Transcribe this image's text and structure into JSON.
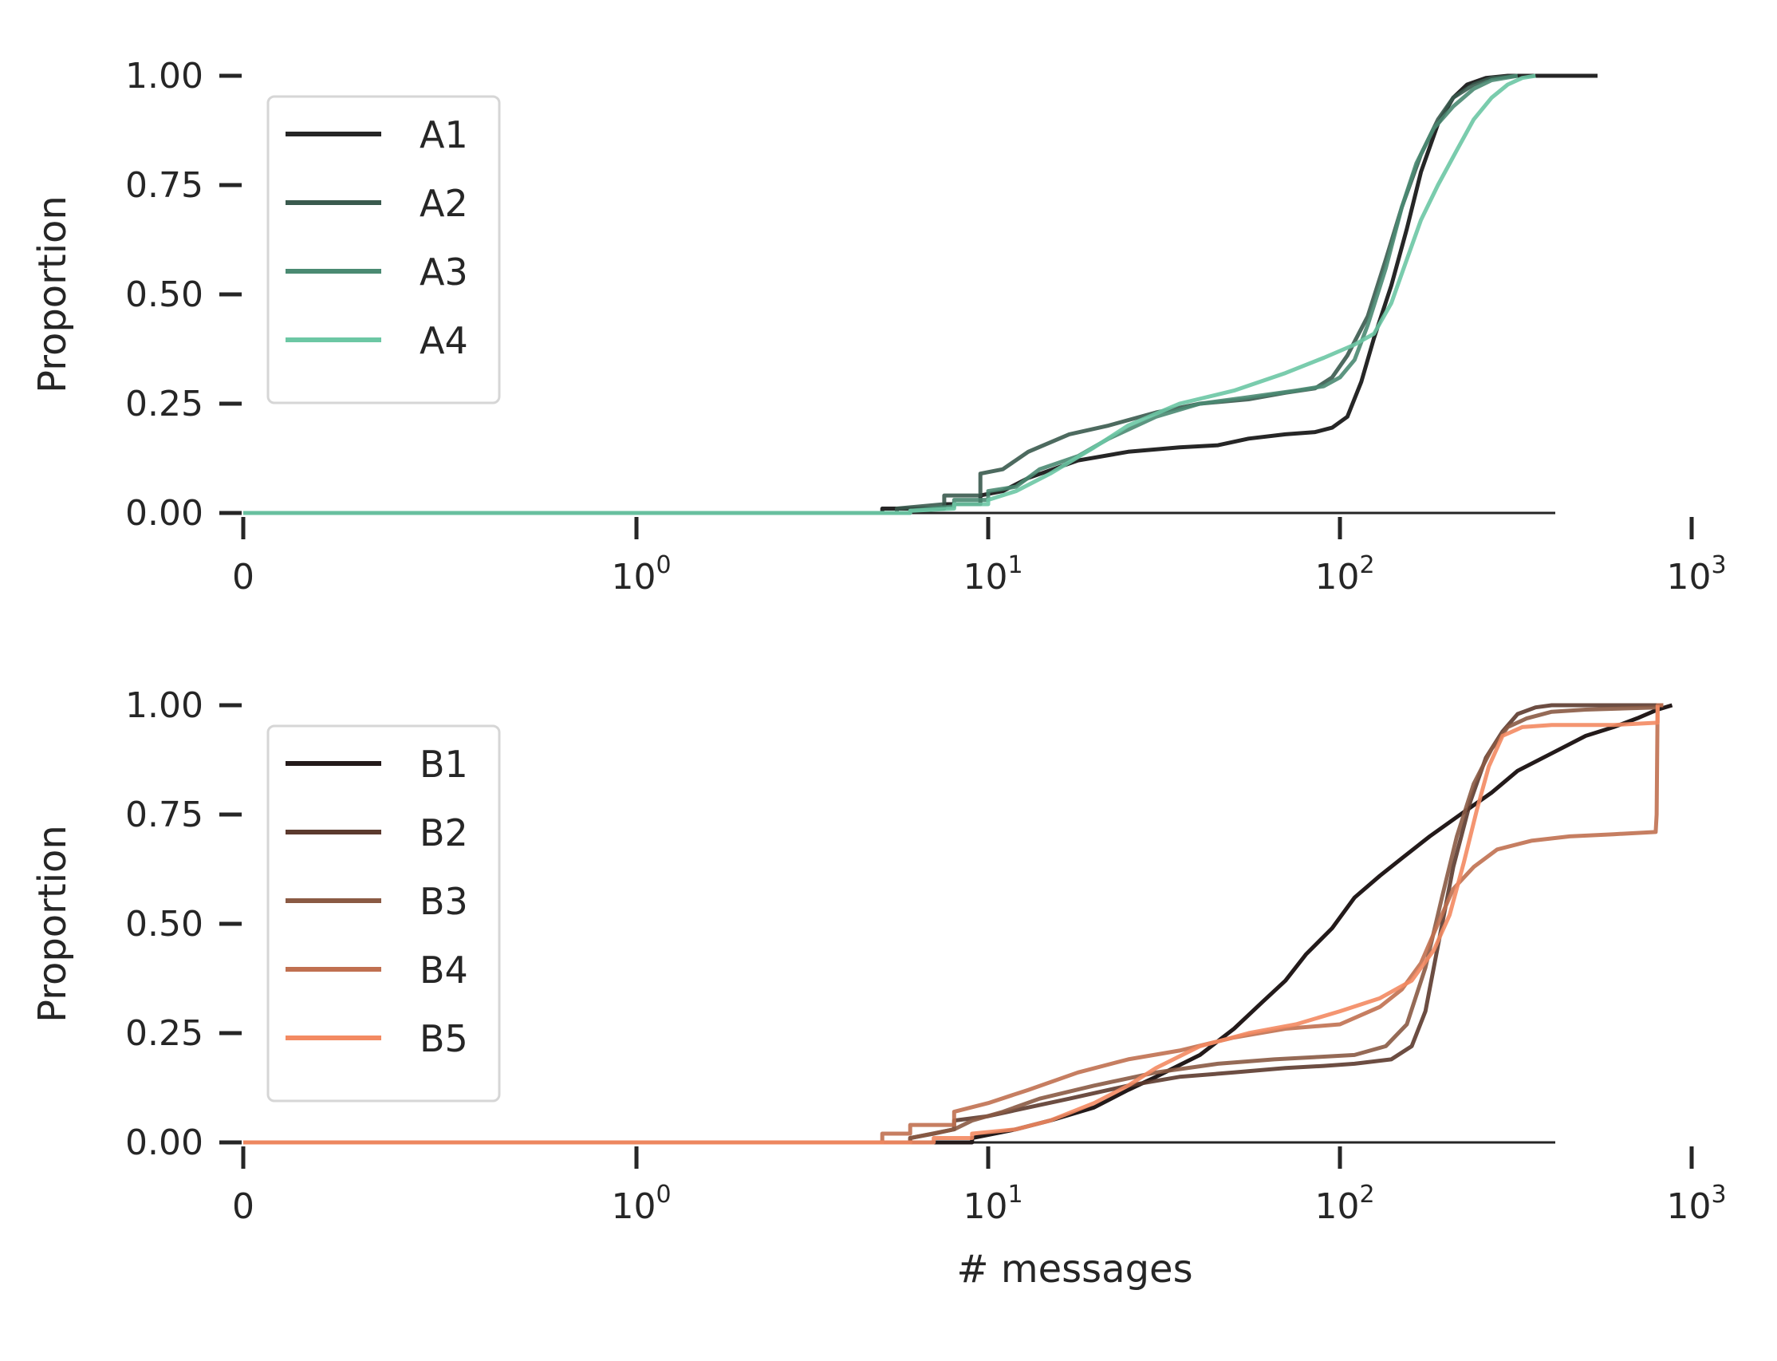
{
  "chart_data": [
    {
      "type": "line",
      "subtype": "empirical-cdf",
      "title": "",
      "xlabel": "",
      "ylabel": "Proportion",
      "xscale": "symlog",
      "xlim": [
        0,
        1000
      ],
      "ylim": [
        0,
        1
      ],
      "x_tick_labels": [
        {
          "base": "0",
          "exp": ""
        },
        {
          "base": "10",
          "exp": "0"
        },
        {
          "base": "10",
          "exp": "1"
        },
        {
          "base": "10",
          "exp": "2"
        },
        {
          "base": "10",
          "exp": "3"
        }
      ],
      "y_tick_labels": [
        "0.00",
        "0.25",
        "0.50",
        "0.75",
        "1.00"
      ],
      "grid": false,
      "legend": "upper-left",
      "series": [
        {
          "name": "A1",
          "color": "#262626",
          "points": [
            [
              0,
              0
            ],
            [
              5,
              0
            ],
            [
              5,
              0.01
            ],
            [
              7.5,
              0.01
            ],
            [
              7.5,
              0.02
            ],
            [
              9.5,
              0.02
            ],
            [
              9.5,
              0.04
            ],
            [
              11,
              0.05
            ],
            [
              13,
              0.08
            ],
            [
              18,
              0.12
            ],
            [
              25,
              0.14
            ],
            [
              35,
              0.15
            ],
            [
              45,
              0.155
            ],
            [
              55,
              0.17
            ],
            [
              70,
              0.18
            ],
            [
              85,
              0.185
            ],
            [
              95,
              0.195
            ],
            [
              105,
              0.22
            ],
            [
              115,
              0.3
            ],
            [
              125,
              0.4
            ],
            [
              140,
              0.52
            ],
            [
              155,
              0.65
            ],
            [
              170,
              0.78
            ],
            [
              190,
              0.89
            ],
            [
              210,
              0.95
            ],
            [
              230,
              0.98
            ],
            [
              260,
              0.995
            ],
            [
              300,
              1.0
            ],
            [
              540,
              1.0
            ]
          ]
        },
        {
          "name": "A2",
          "color": "#3a5a4e",
          "points": [
            [
              0,
              0
            ],
            [
              5.5,
              0
            ],
            [
              5.5,
              0.01
            ],
            [
              7.5,
              0.02
            ],
            [
              7.5,
              0.04
            ],
            [
              9.5,
              0.04
            ],
            [
              9.5,
              0.09
            ],
            [
              11,
              0.1
            ],
            [
              13,
              0.14
            ],
            [
              17,
              0.18
            ],
            [
              22,
              0.2
            ],
            [
              30,
              0.23
            ],
            [
              40,
              0.25
            ],
            [
              55,
              0.26
            ],
            [
              70,
              0.275
            ],
            [
              85,
              0.285
            ],
            [
              95,
              0.31
            ],
            [
              105,
              0.36
            ],
            [
              120,
              0.45
            ],
            [
              135,
              0.58
            ],
            [
              150,
              0.7
            ],
            [
              170,
              0.82
            ],
            [
              190,
              0.9
            ],
            [
              210,
              0.95
            ],
            [
              240,
              0.98
            ],
            [
              270,
              0.995
            ],
            [
              320,
              1.0
            ]
          ]
        },
        {
          "name": "A3",
          "color": "#4a8a72",
          "points": [
            [
              0,
              0
            ],
            [
              6,
              0
            ],
            [
              6,
              0.005
            ],
            [
              8,
              0.015
            ],
            [
              8,
              0.03
            ],
            [
              10,
              0.03
            ],
            [
              10,
              0.05
            ],
            [
              12,
              0.06
            ],
            [
              14,
              0.1
            ],
            [
              18,
              0.13
            ],
            [
              22,
              0.17
            ],
            [
              30,
              0.22
            ],
            [
              40,
              0.25
            ],
            [
              55,
              0.265
            ],
            [
              75,
              0.28
            ],
            [
              90,
              0.29
            ],
            [
              100,
              0.31
            ],
            [
              110,
              0.35
            ],
            [
              120,
              0.43
            ],
            [
              135,
              0.56
            ],
            [
              150,
              0.7
            ],
            [
              165,
              0.8
            ],
            [
              185,
              0.88
            ],
            [
              210,
              0.93
            ],
            [
              240,
              0.97
            ],
            [
              270,
              0.99
            ],
            [
              320,
              1.0
            ]
          ]
        },
        {
          "name": "A4",
          "color": "#6cc7a4",
          "points": [
            [
              0,
              0
            ],
            [
              6,
              0
            ],
            [
              6,
              0.005
            ],
            [
              8,
              0.01
            ],
            [
              8,
              0.02
            ],
            [
              10,
              0.02
            ],
            [
              10,
              0.03
            ],
            [
              12,
              0.05
            ],
            [
              15,
              0.09
            ],
            [
              20,
              0.15
            ],
            [
              25,
              0.2
            ],
            [
              35,
              0.25
            ],
            [
              50,
              0.28
            ],
            [
              70,
              0.32
            ],
            [
              90,
              0.355
            ],
            [
              110,
              0.385
            ],
            [
              125,
              0.41
            ],
            [
              140,
              0.48
            ],
            [
              155,
              0.58
            ],
            [
              170,
              0.67
            ],
            [
              190,
              0.75
            ],
            [
              215,
              0.83
            ],
            [
              240,
              0.9
            ],
            [
              270,
              0.95
            ],
            [
              300,
              0.98
            ],
            [
              330,
              0.995
            ],
            [
              360,
              1.0
            ]
          ]
        }
      ]
    },
    {
      "type": "line",
      "subtype": "empirical-cdf",
      "title": "",
      "xlabel": "# messages",
      "ylabel": "Proportion",
      "xscale": "symlog",
      "xlim": [
        0,
        1000
      ],
      "ylim": [
        0,
        1
      ],
      "x_tick_labels": [
        {
          "base": "0",
          "exp": ""
        },
        {
          "base": "10",
          "exp": "0"
        },
        {
          "base": "10",
          "exp": "1"
        },
        {
          "base": "10",
          "exp": "2"
        },
        {
          "base": "10",
          "exp": "3"
        }
      ],
      "y_tick_labels": [
        "0.00",
        "0.25",
        "0.50",
        "0.75",
        "1.00"
      ],
      "grid": false,
      "legend": "upper-left",
      "series": [
        {
          "name": "B1",
          "color": "#231a1a",
          "points": [
            [
              0,
              0
            ],
            [
              9,
              0
            ],
            [
              9,
              0.01
            ],
            [
              12,
              0.03
            ],
            [
              15,
              0.05
            ],
            [
              20,
              0.08
            ],
            [
              25,
              0.12
            ],
            [
              30,
              0.15
            ],
            [
              40,
              0.2
            ],
            [
              50,
              0.26
            ],
            [
              60,
              0.32
            ],
            [
              70,
              0.37
            ],
            [
              80,
              0.43
            ],
            [
              95,
              0.49
            ],
            [
              110,
              0.56
            ],
            [
              130,
              0.61
            ],
            [
              150,
              0.65
            ],
            [
              180,
              0.7
            ],
            [
              220,
              0.75
            ],
            [
              270,
              0.8
            ],
            [
              320,
              0.85
            ],
            [
              400,
              0.89
            ],
            [
              500,
              0.93
            ],
            [
              600,
              0.95
            ],
            [
              700,
              0.97
            ],
            [
              800,
              0.99
            ],
            [
              880,
              1.0
            ]
          ]
        },
        {
          "name": "B2",
          "color": "#5c3a2e",
          "points": [
            [
              0,
              0
            ],
            [
              6,
              0
            ],
            [
              6,
              0.01
            ],
            [
              7,
              0.02
            ],
            [
              8,
              0.03
            ],
            [
              8,
              0.05
            ],
            [
              10,
              0.06
            ],
            [
              13,
              0.08
            ],
            [
              17,
              0.1
            ],
            [
              25,
              0.13
            ],
            [
              35,
              0.15
            ],
            [
              50,
              0.16
            ],
            [
              70,
              0.17
            ],
            [
              90,
              0.175
            ],
            [
              110,
              0.18
            ],
            [
              140,
              0.19
            ],
            [
              160,
              0.22
            ],
            [
              175,
              0.3
            ],
            [
              190,
              0.45
            ],
            [
              210,
              0.63
            ],
            [
              235,
              0.78
            ],
            [
              260,
              0.88
            ],
            [
              290,
              0.94
            ],
            [
              320,
              0.98
            ],
            [
              360,
              0.995
            ],
            [
              400,
              1.0
            ],
            [
              830,
              1.0
            ]
          ]
        },
        {
          "name": "B3",
          "color": "#8a5a44",
          "points": [
            [
              0,
              0
            ],
            [
              6,
              0
            ],
            [
              6,
              0.01
            ],
            [
              8,
              0.03
            ],
            [
              9,
              0.05
            ],
            [
              11,
              0.07
            ],
            [
              14,
              0.1
            ],
            [
              20,
              0.13
            ],
            [
              30,
              0.16
            ],
            [
              45,
              0.18
            ],
            [
              65,
              0.19
            ],
            [
              85,
              0.195
            ],
            [
              110,
              0.2
            ],
            [
              135,
              0.22
            ],
            [
              155,
              0.27
            ],
            [
              175,
              0.4
            ],
            [
              195,
              0.56
            ],
            [
              215,
              0.7
            ],
            [
              240,
              0.82
            ],
            [
              270,
              0.9
            ],
            [
              300,
              0.95
            ],
            [
              340,
              0.97
            ],
            [
              400,
              0.985
            ],
            [
              500,
              0.99
            ],
            [
              800,
              0.995
            ],
            [
              800,
              1.0
            ],
            [
              830,
              1.0
            ]
          ]
        },
        {
          "name": "B4",
          "color": "#c07050",
          "points": [
            [
              0,
              0
            ],
            [
              5,
              0
            ],
            [
              5,
              0.02
            ],
            [
              6,
              0.02
            ],
            [
              6,
              0.04
            ],
            [
              8,
              0.04
            ],
            [
              8,
              0.07
            ],
            [
              10,
              0.09
            ],
            [
              13,
              0.12
            ],
            [
              18,
              0.16
            ],
            [
              25,
              0.19
            ],
            [
              35,
              0.21
            ],
            [
              50,
              0.24
            ],
            [
              70,
              0.26
            ],
            [
              100,
              0.27
            ],
            [
              130,
              0.31
            ],
            [
              150,
              0.35
            ],
            [
              170,
              0.41
            ],
            [
              190,
              0.5
            ],
            [
              210,
              0.58
            ],
            [
              240,
              0.63
            ],
            [
              280,
              0.67
            ],
            [
              350,
              0.69
            ],
            [
              450,
              0.7
            ],
            [
              600,
              0.705
            ],
            [
              790,
              0.71
            ],
            [
              795,
              0.75
            ],
            [
              800,
              1.0
            ],
            [
              830,
              1.0
            ]
          ]
        },
        {
          "name": "B5",
          "color": "#f38a62",
          "points": [
            [
              0,
              0
            ],
            [
              7,
              0
            ],
            [
              7,
              0.01
            ],
            [
              9,
              0.01
            ],
            [
              9,
              0.02
            ],
            [
              12,
              0.03
            ],
            [
              15,
              0.05
            ],
            [
              20,
              0.09
            ],
            [
              25,
              0.13
            ],
            [
              30,
              0.17
            ],
            [
              40,
              0.22
            ],
            [
              55,
              0.25
            ],
            [
              75,
              0.27
            ],
            [
              100,
              0.3
            ],
            [
              130,
              0.33
            ],
            [
              160,
              0.37
            ],
            [
              185,
              0.44
            ],
            [
              205,
              0.52
            ],
            [
              225,
              0.64
            ],
            [
              245,
              0.76
            ],
            [
              265,
              0.86
            ],
            [
              290,
              0.93
            ],
            [
              330,
              0.95
            ],
            [
              400,
              0.955
            ],
            [
              600,
              0.955
            ],
            [
              800,
              0.96
            ],
            [
              800,
              1.0
            ]
          ]
        }
      ]
    }
  ]
}
